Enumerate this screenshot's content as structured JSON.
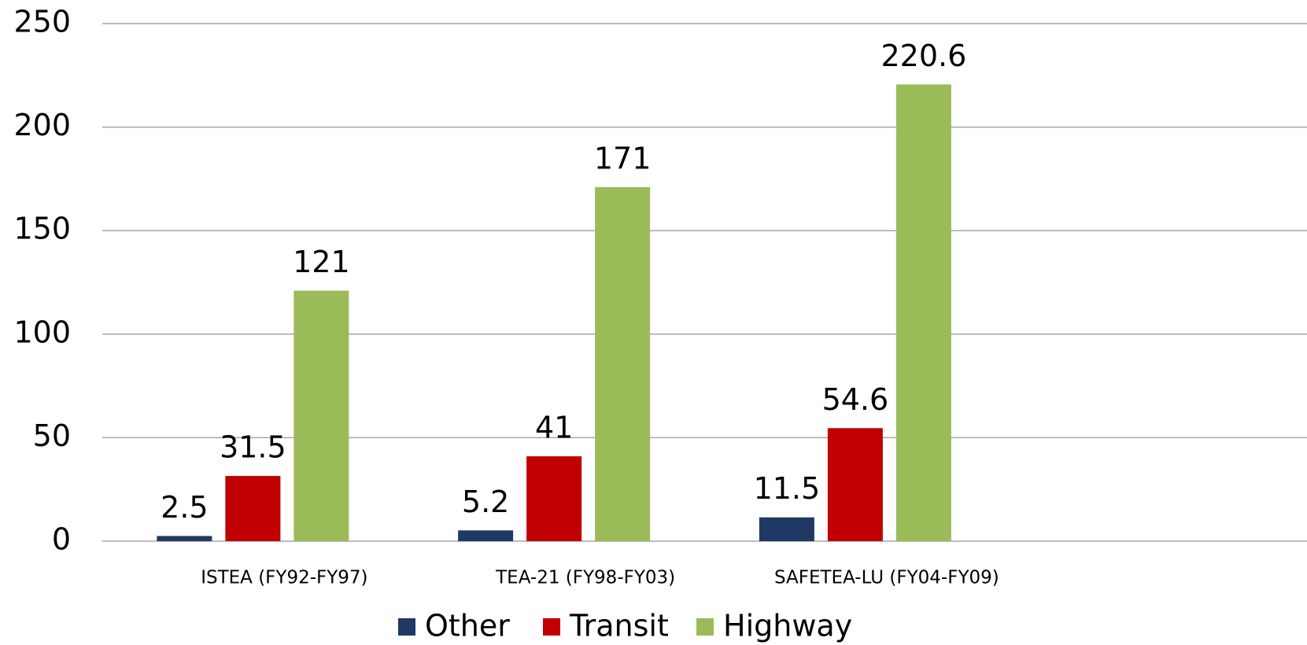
{
  "chart_data": {
    "type": "bar",
    "categories": [
      "ISTEA (FY92-FY97)",
      "TEA-21 (FY98-FY03)",
      "SAFETEA-LU (FY04-FY09)",
      null
    ],
    "series": [
      {
        "name": "Other",
        "color": "#1f3864",
        "values": [
          2.5,
          5.2,
          11.5,
          null
        ]
      },
      {
        "name": "Transit",
        "color": "#c00000",
        "values": [
          31.5,
          41,
          54.6,
          null
        ]
      },
      {
        "name": "Highway",
        "color": "#9bbb59",
        "values": [
          121,
          171,
          220.6,
          null
        ]
      }
    ],
    "ylim": [
      0,
      250
    ],
    "yticks": [
      0,
      50,
      100,
      150,
      200,
      250
    ],
    "grid": true,
    "legend": "bottom"
  }
}
